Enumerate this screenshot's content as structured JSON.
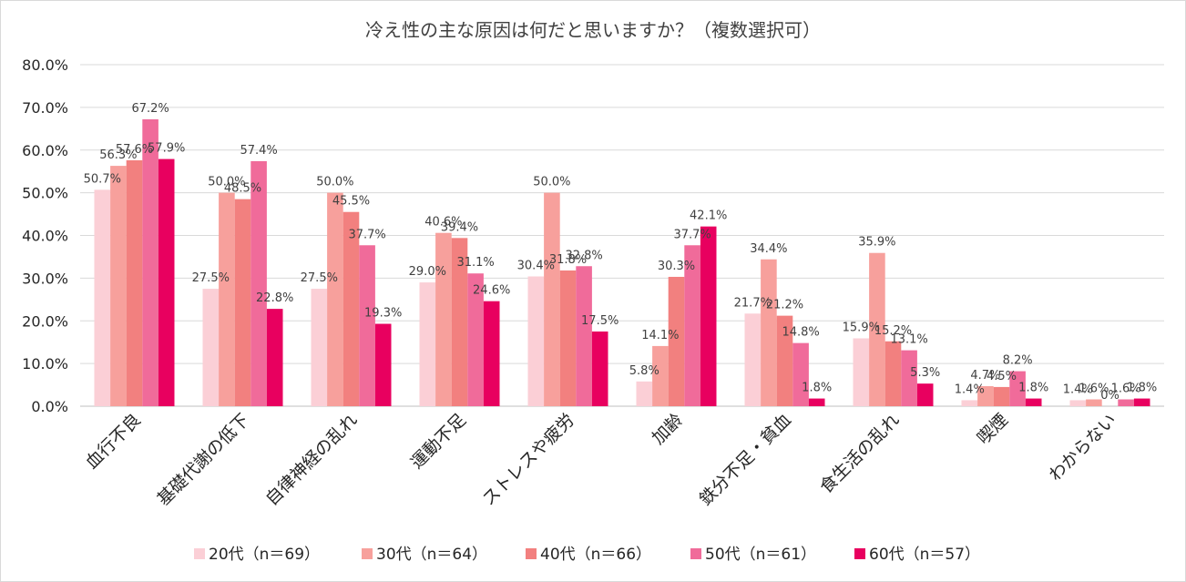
{
  "chart_data": {
    "type": "bar",
    "title": "冷え性の主な原因は何だと思いますか？（複数選択可）",
    "xlabel": "",
    "ylabel": "",
    "ylim": [
      0,
      80
    ],
    "ytick_labels": [
      "0.0%",
      "10.0%",
      "20.0%",
      "30.0%",
      "40.0%",
      "50.0%",
      "60.0%",
      "70.0%",
      "80.0%"
    ],
    "grid": true,
    "legend_position": "bottom",
    "categories": [
      "血行不良",
      "基礎代謝の低下",
      "自律神経の乱れ",
      "運動不足",
      "ストレスや疲労",
      "加齢",
      "鉄分不足・貧血",
      "食生活の乱れ",
      "喫煙",
      "わからない"
    ],
    "series": [
      {
        "name": "20代（n＝69）",
        "color": "#fbcfd6",
        "values": [
          50.7,
          27.5,
          27.5,
          29.0,
          30.4,
          5.8,
          21.7,
          15.9,
          1.4,
          1.4
        ],
        "labels": [
          "50.7%",
          "27.5%",
          "27.5%",
          "29.0%",
          "30.4%",
          "5.8%",
          "21.7%",
          "15.9%",
          "1.4%",
          "1.4%"
        ]
      },
      {
        "name": "30代（n＝64）",
        "color": "#f7a09c",
        "values": [
          56.3,
          50.0,
          50.0,
          40.6,
          50.0,
          14.1,
          34.4,
          35.9,
          4.7,
          1.6
        ],
        "labels": [
          "56.3%",
          "50.0%",
          "50.0%",
          "40.6%",
          "50.0%",
          "14.1%",
          "34.4%",
          "35.9%",
          "4.7%",
          "1.6%"
        ]
      },
      {
        "name": "40代（n＝66）",
        "color": "#f2807f",
        "values": [
          57.6,
          48.5,
          45.5,
          39.4,
          31.8,
          30.3,
          21.2,
          15.2,
          4.5,
          0
        ],
        "labels": [
          "57.6%",
          "48.5%",
          "45.5%",
          "39.4%",
          "31.8%",
          "30.3%",
          "21.2%",
          "15.2%",
          "4.5%",
          "0%"
        ]
      },
      {
        "name": "50代（n＝61）",
        "color": "#f06b9a",
        "values": [
          67.2,
          57.4,
          37.7,
          31.1,
          32.8,
          37.7,
          14.8,
          13.1,
          8.2,
          1.6
        ],
        "labels": [
          "67.2%",
          "57.4%",
          "37.7%",
          "31.1%",
          "32.8%",
          "37.7%",
          "14.8%",
          "13.1%",
          "8.2%",
          "1.6%"
        ]
      },
      {
        "name": "60代（n＝57）",
        "color": "#e8005f",
        "values": [
          57.9,
          22.8,
          19.3,
          24.6,
          17.5,
          42.1,
          1.8,
          5.3,
          1.8,
          1.8
        ],
        "labels": [
          "57.9%",
          "22.8%",
          "19.3%",
          "24.6%",
          "17.5%",
          "42.1%",
          "1.8%",
          "5.3%",
          "1.8%",
          "1.8%"
        ]
      }
    ]
  }
}
